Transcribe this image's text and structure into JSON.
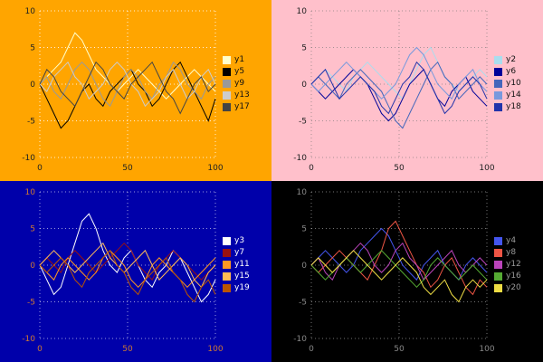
{
  "chart_data": [
    {
      "type": "line",
      "panel": "top-left",
      "title": "",
      "xlabel": "",
      "ylabel": "",
      "bg": "#ffa500",
      "tick_color": "#222222",
      "grid_color": "rgba(255,255,255,0.85)",
      "legend_text_color": "#111111",
      "legend_position": "center right",
      "grid": true,
      "xlim": [
        0,
        100
      ],
      "ylim": [
        -10,
        10
      ],
      "xticks": [
        0,
        50,
        100
      ],
      "yticks": [
        -10,
        -5,
        0,
        5,
        10
      ],
      "x": [
        0,
        4,
        8,
        12,
        16,
        20,
        24,
        28,
        32,
        36,
        40,
        44,
        48,
        52,
        56,
        60,
        64,
        68,
        72,
        76,
        80,
        84,
        88,
        92,
        96,
        100
      ],
      "series": [
        {
          "name": "y1",
          "color": "#ffffcc",
          "values": [
            0,
            1,
            2,
            3,
            5,
            7,
            6,
            4,
            2,
            1,
            0,
            -1,
            0,
            1,
            2,
            1,
            0,
            -1,
            -2,
            -1,
            0,
            1,
            2,
            1,
            0,
            -1
          ]
        },
        {
          "name": "y5",
          "color": "#000000",
          "values": [
            0,
            -2,
            -4,
            -6,
            -5,
            -3,
            -1,
            0,
            -2,
            -3,
            -1,
            0,
            1,
            2,
            0,
            -1,
            -3,
            -2,
            0,
            2,
            3,
            1,
            -1,
            -3,
            -5,
            -2
          ]
        },
        {
          "name": "y9",
          "color": "#999999",
          "values": [
            0,
            1,
            -1,
            -2,
            0,
            2,
            3,
            2,
            0,
            -2,
            -3,
            -1,
            1,
            2,
            1,
            -1,
            -2,
            0,
            1,
            3,
            2,
            0,
            -1,
            -2,
            0,
            1
          ]
        },
        {
          "name": "y13",
          "color": "#cccccc",
          "values": [
            0,
            -1,
            1,
            2,
            3,
            1,
            0,
            -2,
            -1,
            0,
            2,
            3,
            2,
            0,
            -1,
            -3,
            -2,
            -1,
            1,
            2,
            0,
            -2,
            -1,
            1,
            2,
            0
          ]
        },
        {
          "name": "y17",
          "color": "#444444",
          "values": [
            0,
            2,
            1,
            -1,
            -2,
            -3,
            -1,
            1,
            3,
            2,
            0,
            -1,
            -2,
            0,
            1,
            2,
            3,
            1,
            -1,
            -2,
            -4,
            -2,
            0,
            1,
            -1,
            0
          ]
        }
      ]
    },
    {
      "type": "line",
      "panel": "top-right",
      "title": "",
      "xlabel": "",
      "ylabel": "",
      "bg": "#ffc0cb",
      "tick_color": "#222222",
      "grid_color": "rgba(110,110,110,0.6)",
      "legend_text_color": "#111111",
      "legend_position": "center right",
      "grid": true,
      "xlim": [
        0,
        100
      ],
      "ylim": [
        -10,
        10
      ],
      "xticks": [
        0,
        50,
        100
      ],
      "yticks": [
        -10,
        -5,
        0,
        5,
        10
      ],
      "x": [
        0,
        4,
        8,
        12,
        16,
        20,
        24,
        28,
        32,
        36,
        40,
        44,
        48,
        52,
        56,
        60,
        64,
        68,
        72,
        76,
        80,
        84,
        88,
        92,
        96,
        100
      ],
      "series": [
        {
          "name": "y2",
          "color": "#aaddee",
          "values": [
            0,
            1,
            2,
            1,
            0,
            -1,
            1,
            2,
            3,
            2,
            1,
            0,
            -1,
            -2,
            0,
            2,
            4,
            5,
            3,
            1,
            0,
            -1,
            0,
            1,
            2,
            1
          ]
        },
        {
          "name": "y6",
          "color": "#000099",
          "values": [
            0,
            -1,
            -2,
            -1,
            0,
            1,
            2,
            1,
            0,
            -2,
            -4,
            -5,
            -4,
            -2,
            0,
            1,
            2,
            0,
            -2,
            -3,
            -1,
            0,
            1,
            -1,
            -2,
            -3
          ]
        },
        {
          "name": "y10",
          "color": "#4466bb",
          "values": [
            0,
            1,
            0,
            -1,
            -2,
            0,
            1,
            2,
            1,
            0,
            -1,
            -3,
            -5,
            -6,
            -4,
            -2,
            0,
            2,
            3,
            1,
            0,
            -2,
            -1,
            0,
            1,
            0
          ]
        },
        {
          "name": "y14",
          "color": "#7799dd",
          "values": [
            0,
            -1,
            0,
            1,
            2,
            3,
            2,
            1,
            0,
            -1,
            -2,
            -1,
            0,
            2,
            4,
            5,
            4,
            2,
            0,
            -1,
            -2,
            0,
            1,
            2,
            0,
            -1
          ]
        },
        {
          "name": "y18",
          "color": "#2233aa",
          "values": [
            0,
            1,
            2,
            0,
            -2,
            -1,
            0,
            1,
            0,
            -1,
            -3,
            -4,
            -2,
            0,
            1,
            3,
            2,
            0,
            -2,
            -4,
            -3,
            -1,
            0,
            1,
            0,
            -2
          ]
        }
      ]
    },
    {
      "type": "line",
      "panel": "bottom-left",
      "title": "",
      "xlabel": "",
      "ylabel": "",
      "bg": "#0000aa",
      "tick_color": "#cc7733",
      "grid_color": "rgba(255,255,255,0.6)",
      "legend_text_color": "#ffffff",
      "legend_position": "center right",
      "grid": true,
      "xlim": [
        0,
        100
      ],
      "ylim": [
        -10,
        10
      ],
      "xticks": [
        0,
        50,
        100
      ],
      "yticks": [
        -10,
        -5,
        0,
        5,
        10
      ],
      "x": [
        0,
        4,
        8,
        12,
        16,
        20,
        24,
        28,
        32,
        36,
        40,
        44,
        48,
        52,
        56,
        60,
        64,
        68,
        72,
        76,
        80,
        84,
        88,
        92,
        96,
        100
      ],
      "series": [
        {
          "name": "y3",
          "color": "#ffffff",
          "values": [
            0,
            -2,
            -4,
            -3,
            0,
            3,
            6,
            7,
            5,
            2,
            0,
            -1,
            1,
            2,
            0,
            -2,
            -3,
            -1,
            0,
            2,
            1,
            -1,
            -3,
            -5,
            -4,
            -2
          ]
        },
        {
          "name": "y7",
          "color": "#991111",
          "values": [
            0,
            1,
            0,
            -1,
            1,
            2,
            1,
            0,
            -1,
            0,
            1,
            2,
            3,
            2,
            0,
            -1,
            -2,
            0,
            1,
            2,
            1,
            0,
            -1,
            -2,
            -1,
            0
          ]
        },
        {
          "name": "y11",
          "color": "#ff9922",
          "values": [
            0,
            -1,
            -2,
            0,
            1,
            0,
            -1,
            -2,
            -1,
            1,
            2,
            1,
            0,
            -2,
            -3,
            -2,
            0,
            1,
            0,
            -1,
            -2,
            -3,
            -2,
            -1,
            0,
            1
          ]
        },
        {
          "name": "y15",
          "color": "#ffbb55",
          "values": [
            0,
            1,
            2,
            1,
            0,
            -1,
            0,
            1,
            2,
            3,
            1,
            0,
            -1,
            0,
            1,
            2,
            0,
            -2,
            -1,
            0,
            1,
            0,
            -2,
            -3,
            -1,
            0
          ]
        },
        {
          "name": "y19",
          "color": "#bb5500",
          "values": [
            0,
            -1,
            0,
            1,
            0,
            -2,
            -3,
            -1,
            0,
            1,
            2,
            0,
            -1,
            -3,
            -4,
            -2,
            -1,
            0,
            1,
            -1,
            -2,
            -4,
            -5,
            -3,
            -2,
            -4
          ]
        }
      ]
    },
    {
      "type": "line",
      "panel": "bottom-right",
      "title": "",
      "xlabel": "",
      "ylabel": "",
      "bg": "#000000",
      "tick_color": "#888888",
      "grid_color": "rgba(255,255,255,0.45)",
      "legend_text_color": "#999999",
      "legend_position": "center right",
      "grid": true,
      "xlim": [
        0,
        100
      ],
      "ylim": [
        -10,
        10
      ],
      "xticks": [
        0,
        50,
        100
      ],
      "yticks": [
        -10,
        -5,
        0,
        5,
        10
      ],
      "x": [
        0,
        4,
        8,
        12,
        16,
        20,
        24,
        28,
        32,
        36,
        40,
        44,
        48,
        52,
        56,
        60,
        64,
        68,
        72,
        76,
        80,
        84,
        88,
        92,
        96,
        100
      ],
      "series": [
        {
          "name": "y4",
          "color": "#4455ee",
          "values": [
            0,
            1,
            2,
            1,
            0,
            -1,
            0,
            2,
            3,
            4,
            5,
            4,
            2,
            0,
            -1,
            -2,
            0,
            1,
            2,
            0,
            -1,
            -2,
            0,
            1,
            0,
            -1
          ]
        },
        {
          "name": "y8",
          "color": "#ee5544",
          "values": [
            0,
            -1,
            0,
            1,
            2,
            1,
            0,
            -1,
            -2,
            0,
            2,
            5,
            6,
            4,
            2,
            0,
            -1,
            -3,
            -2,
            0,
            1,
            -1,
            -3,
            -4,
            -2,
            -3
          ]
        },
        {
          "name": "y12",
          "color": "#bb44bb",
          "values": [
            0,
            1,
            -1,
            -2,
            0,
            1,
            2,
            3,
            2,
            0,
            -1,
            0,
            2,
            3,
            1,
            0,
            -2,
            -1,
            0,
            1,
            2,
            0,
            -1,
            0,
            1,
            0
          ]
        },
        {
          "name": "y16",
          "color": "#55aa33",
          "values": [
            0,
            -1,
            -2,
            -1,
            0,
            1,
            0,
            -1,
            0,
            1,
            2,
            1,
            0,
            -1,
            -2,
            -3,
            -2,
            0,
            1,
            0,
            -1,
            -2,
            -1,
            0,
            -1,
            -2
          ]
        },
        {
          "name": "y20",
          "color": "#eedd44",
          "values": [
            0,
            1,
            0,
            -1,
            0,
            1,
            2,
            1,
            0,
            -1,
            -2,
            -1,
            0,
            1,
            0,
            -1,
            -3,
            -4,
            -3,
            -2,
            -4,
            -5,
            -3,
            -2,
            -3,
            -2
          ]
        }
      ]
    }
  ]
}
